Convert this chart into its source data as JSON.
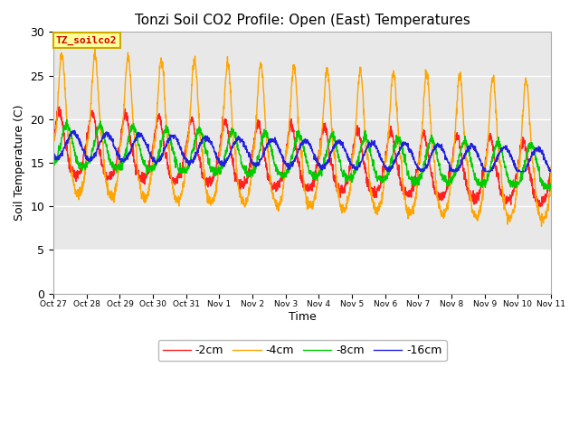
{
  "title": "Tonzi Soil CO2 Profile: Open (East) Temperatures",
  "xlabel": "Time",
  "ylabel": "Soil Temperature (C)",
  "ylim": [
    0,
    30
  ],
  "series_colors": [
    "#ff2020",
    "#ffa500",
    "#00cc00",
    "#2020dd"
  ],
  "series_labels": [
    "-2cm",
    "-4cm",
    "-8cm",
    "-16cm"
  ],
  "xtick_labels": [
    "Oct 27",
    "Oct 28",
    "Oct 29",
    "Oct 30",
    "Oct 31",
    "Nov 1",
    "Nov 2",
    "Nov 3",
    "Nov 4",
    "Nov 5",
    "Nov 6",
    "Nov 7",
    "Nov 8",
    "Nov 9",
    "Nov 10",
    "Nov 11"
  ],
  "legend_label": "TZ_soilco2",
  "legend_bg": "#ffff99",
  "legend_edge": "#ccaa00",
  "n_days": 15,
  "ppd": 144,
  "fig_bg": "#ffffff",
  "plot_bg": "#e8e8e8",
  "white_band_max": 5
}
